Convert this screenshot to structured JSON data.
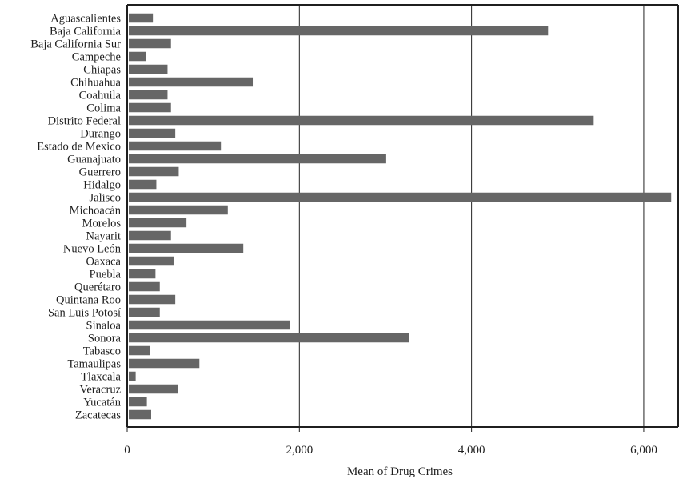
{
  "chart_data": {
    "type": "bar",
    "orientation": "horizontal",
    "categories": [
      "Aguascalientes",
      "Baja California",
      "Baja California Sur",
      "Campeche",
      "Chiapas",
      "Chihuahua",
      "Coahuila",
      "Colima",
      "Distrito Federal",
      "Durango",
      "Estado de Mexico",
      "Guanajuato",
      "Guerrero",
      "Hidalgo",
      "Jalisco",
      "Michoacán",
      "Morelos",
      "Nayarit",
      "Nuevo León",
      "Oaxaca",
      "Puebla",
      "Querétaro",
      "Quintana Roo",
      "San Luis Potosí",
      "Sinaloa",
      "Sonora",
      "Tabasco",
      "Tamaulipas",
      "Tlaxcala",
      "Veracruz",
      "Yucatán",
      "Zacatecas"
    ],
    "values": [
      280,
      4870,
      490,
      200,
      450,
      1440,
      450,
      490,
      5400,
      540,
      1070,
      2990,
      580,
      320,
      6300,
      1150,
      670,
      490,
      1330,
      520,
      310,
      360,
      540,
      360,
      1870,
      3260,
      250,
      820,
      80,
      570,
      210,
      260
    ],
    "xlabel": "Mean of Drug Crimes",
    "ylabel": "",
    "xlim": [
      0,
      6400
    ],
    "x_ticks": [
      0,
      2000,
      4000,
      6000
    ],
    "x_tick_labels": [
      "0",
      "2,000",
      "4,000",
      "6,000"
    ],
    "grid": "vertical major gridlines",
    "bar_color": "#666666",
    "axis_color": "#1f1f1f",
    "grid_color": "#222222"
  }
}
